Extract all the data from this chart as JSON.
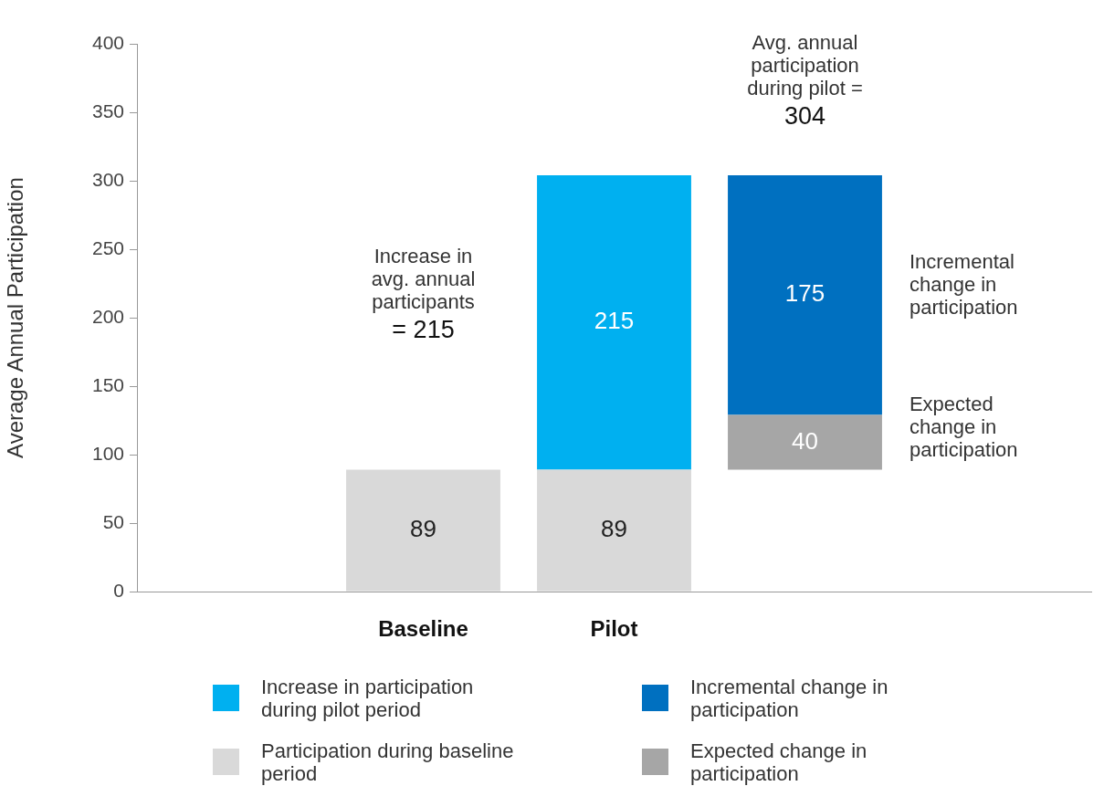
{
  "chart_data": {
    "type": "bar",
    "ylabel": "Average Annual Participation",
    "categories": [
      null,
      "Baseline",
      "Pilot",
      null,
      null
    ],
    "series": [
      {
        "name": "Participation during baseline period",
        "color": "#d9d9d9",
        "values": [
          null,
          89,
          89,
          null,
          null
        ],
        "base": [
          null,
          0,
          0,
          null,
          null
        ]
      },
      {
        "name": "Increase in participation during pilot period",
        "color": "#00b0f0",
        "values": [
          null,
          null,
          215,
          null,
          null
        ],
        "base": [
          null,
          null,
          89,
          null,
          null
        ]
      },
      {
        "name": "Expected change in participation",
        "color": "#a6a6a6",
        "values": [
          null,
          null,
          null,
          40,
          null
        ],
        "base": [
          null,
          null,
          null,
          89,
          null
        ]
      },
      {
        "name": "Incremental change in participation",
        "color": "#0070c0",
        "values": [
          null,
          null,
          null,
          175,
          null
        ],
        "base": [
          null,
          null,
          null,
          129,
          null
        ]
      }
    ],
    "ylim": [
      0,
      400
    ],
    "yticks": [
      0,
      50,
      100,
      150,
      200,
      250,
      300,
      350,
      400
    ],
    "grid": false,
    "legend": "bottom",
    "data_labels": true,
    "annotations": [
      "Increase in\navg. annual\nparticipants\n= 215",
      "Avg. annual\nparticipation\nduring pilot =\n304",
      "Incremental\nchange in\nparticipation",
      "Expected\nchange in\nparticipation"
    ]
  }
}
